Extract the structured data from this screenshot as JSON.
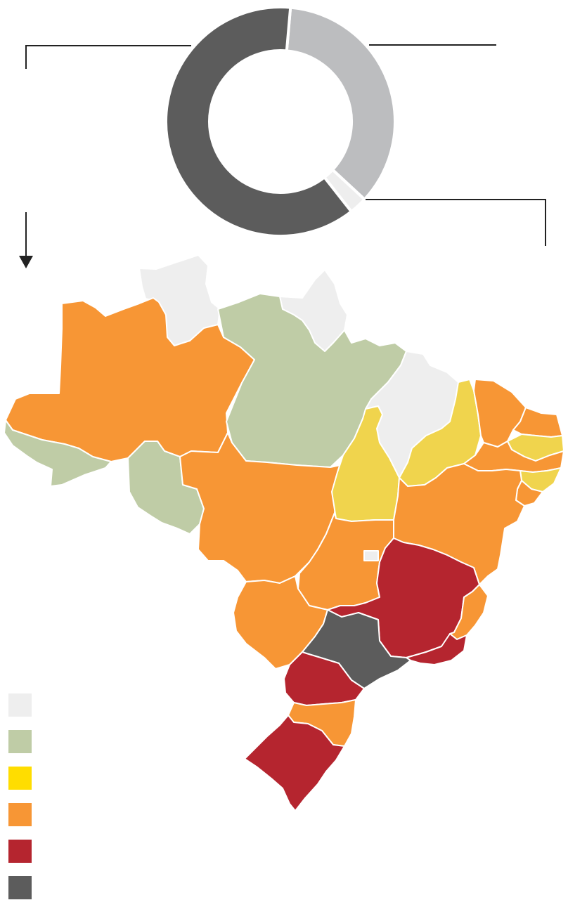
{
  "colors": {
    "light_gray": "#eeeeee",
    "sage_green": "#bfcca6",
    "yellow": "#ffdd00",
    "yellow_map": "#f0d44d",
    "orange": "#f79635",
    "red": "#b5252f",
    "dark_gray": "#5c5c5c",
    "mid_gray": "#bcbdbf",
    "leader": "#222222"
  },
  "chart_data": {
    "type": "pie",
    "slices": [
      {
        "category": "mid_gray",
        "value": 35.5,
        "color": "#bcbdbf"
      },
      {
        "category": "light_gray",
        "value": 2.5,
        "color": "#eeeeee"
      },
      {
        "category": "dark_gray",
        "value": 62.0,
        "color": "#5c5c5c"
      }
    ]
  },
  "legend": [
    {
      "category": "light_gray",
      "color": "#eeeeee"
    },
    {
      "category": "sage_green",
      "color": "#bfcca6"
    },
    {
      "category": "yellow",
      "color": "#ffdd00"
    },
    {
      "category": "orange",
      "color": "#f79635"
    },
    {
      "category": "red",
      "color": "#b5252f"
    },
    {
      "category": "dark_gray",
      "color": "#5c5c5c"
    }
  ],
  "map": {
    "regions": [
      {
        "id": "roraima",
        "category": "light_gray"
      },
      {
        "id": "amapa",
        "category": "light_gray"
      },
      {
        "id": "maranhao",
        "category": "light_gray"
      },
      {
        "id": "amazonas",
        "category": "orange"
      },
      {
        "id": "para",
        "category": "sage_green"
      },
      {
        "id": "acre",
        "category": "sage_green"
      },
      {
        "id": "rondonia",
        "category": "sage_green"
      },
      {
        "id": "tocantins",
        "category": "yellow"
      },
      {
        "id": "piaui",
        "category": "yellow"
      },
      {
        "id": "paraiba",
        "category": "yellow"
      },
      {
        "id": "alagoas",
        "category": "yellow"
      },
      {
        "id": "ceara",
        "category": "orange"
      },
      {
        "id": "rio-grande-do-norte",
        "category": "orange"
      },
      {
        "id": "pernambuco",
        "category": "orange"
      },
      {
        "id": "sergipe",
        "category": "orange"
      },
      {
        "id": "bahia",
        "category": "orange"
      },
      {
        "id": "mato-grosso",
        "category": "orange"
      },
      {
        "id": "goias",
        "category": "orange"
      },
      {
        "id": "mato-grosso-do-sul",
        "category": "orange"
      },
      {
        "id": "espirito-santo",
        "category": "orange"
      },
      {
        "id": "santa-catarina",
        "category": "orange"
      },
      {
        "id": "distrito-federal",
        "category": "light_gray"
      },
      {
        "id": "minas-gerais",
        "category": "red"
      },
      {
        "id": "rio-de-janeiro",
        "category": "red"
      },
      {
        "id": "parana",
        "category": "red"
      },
      {
        "id": "rio-grande-do-sul",
        "category": "red"
      },
      {
        "id": "sao-paulo",
        "category": "dark_gray"
      }
    ]
  }
}
